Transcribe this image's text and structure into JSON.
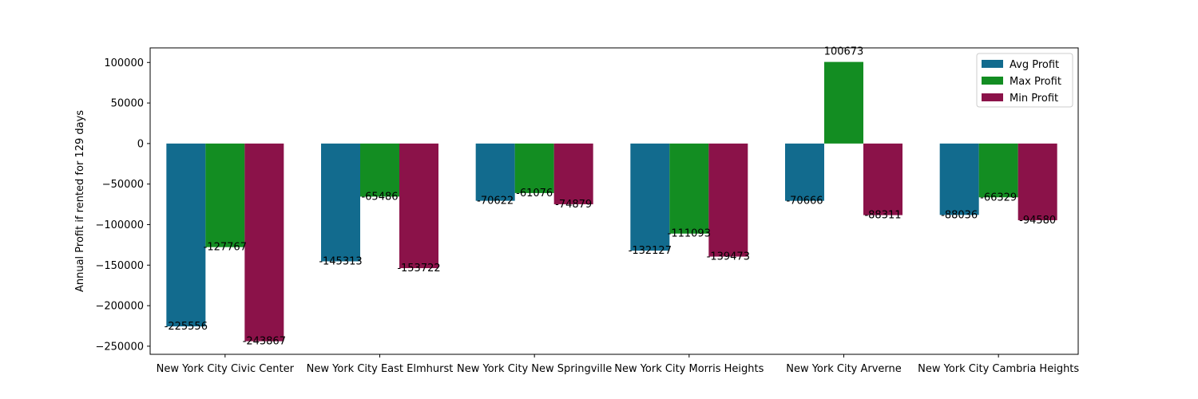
{
  "chart_data": {
    "type": "bar",
    "title": "",
    "xlabel": "",
    "ylabel": "Annual Profit if rented for 129 days",
    "categories": [
      "New York City Civic Center",
      "New York City East Elmhurst",
      "New York City New Springville",
      "New York City Morris Heights",
      "New York City Arverne",
      "New York City Cambria Heights"
    ],
    "series": [
      {
        "name": "Avg Profit",
        "color": "#126b8e",
        "values": [
          -225556,
          -145313,
          -70622,
          -132127,
          -70666,
          -88036
        ]
      },
      {
        "name": "Max Profit",
        "color": "#138d22",
        "values": [
          -127767,
          -65486,
          -61076,
          -111093,
          100673,
          -66329
        ]
      },
      {
        "name": "Min Profit",
        "color": "#8b1249",
        "values": [
          -243867,
          -153722,
          -74879,
          -139473,
          -88311,
          -94580
        ]
      }
    ],
    "ylim": [
      -260000,
      118000
    ],
    "yticks": [
      -250000,
      -200000,
      -150000,
      -100000,
      -50000,
      0,
      50000,
      100000
    ],
    "ytick_labels": [
      "−250000",
      "−200000",
      "−150000",
      "−100000",
      "−50000",
      "0",
      "50000",
      "100000"
    ],
    "grid": false,
    "legend_position": "top-right"
  }
}
